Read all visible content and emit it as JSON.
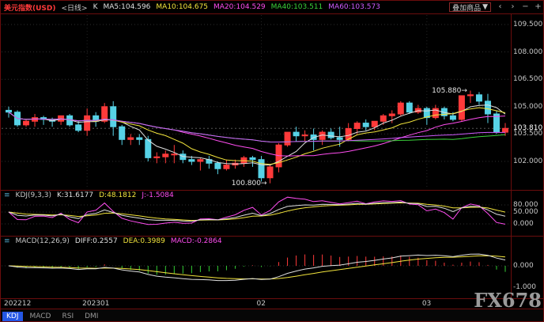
{
  "header": {
    "title": "美元指数(USD)",
    "period": "<日线>",
    "k": {
      "label": "K",
      "color": "#e0e0e0"
    },
    "mas": [
      {
        "label": "MA5:104.596",
        "color": "#e0e0e0"
      },
      {
        "label": "MA10:104.675",
        "color": "#f2e43c"
      },
      {
        "label": "MA20:104.529",
        "color": "#ff4df0"
      },
      {
        "label": "MA40:103.511",
        "color": "#3bd33b"
      },
      {
        "label": "MA60:103.573",
        "color": "#cf5cff"
      }
    ],
    "overlay_button": "叠加商品"
  },
  "icons": {
    "caret_down": "▼",
    "scroll_left": "‹",
    "scroll_right": "›",
    "zoom_out": "−",
    "zoom_in": "+",
    "indicator": "≡"
  },
  "kdj_panel": {
    "name": "KDJ(9,3,3)",
    "values": [
      {
        "label": "K:31.6177",
        "color": "#e0e0e0"
      },
      {
        "label": "D:48.1812",
        "color": "#f2e43c"
      },
      {
        "label": "J:-1.5084",
        "color": "#ff4df0"
      }
    ]
  },
  "macd_panel": {
    "name": "MACD(12,26,9)",
    "values": [
      {
        "label": "DIFF:0.2557",
        "color": "#e0e0e0"
      },
      {
        "label": "DEA:0.3989",
        "color": "#f2e43c"
      },
      {
        "label": "MACD:-0.2864",
        "color": "#ff4df0"
      }
    ]
  },
  "tabs": [
    {
      "label": "KDJ",
      "active": true
    },
    {
      "label": "MACD",
      "active": false
    },
    {
      "label": "RSI",
      "active": false
    },
    {
      "label": "DMI",
      "active": false
    }
  ],
  "watermark": "FX678",
  "colors": {
    "background": "#000000",
    "frame": "#6b0d0d",
    "grid": "#2e2e2e",
    "axis_text": "#c8c8c8",
    "title": "#ff3a3a",
    "up": "#ff3a3a",
    "down": "#57d2e6",
    "hist_pos": "#ff3a3a",
    "hist_neg": "#33cc33",
    "tab_active_bg": "#2457e6",
    "watermark": "#9a9a9a"
  },
  "chart_data": {
    "type": "candlestick",
    "title": "美元指数(USD) 日线",
    "ylim": [
      100.3,
      110.0
    ],
    "y_ticks": [
      "109.500",
      "108.000",
      "106.500",
      "105.000",
      "103.500",
      "102.000"
    ],
    "x_labels": [
      {
        "label": "202212",
        "index": 0
      },
      {
        "label": "202301",
        "index": 9
      },
      {
        "label": "02",
        "index": 29
      },
      {
        "label": "03",
        "index": 48
      }
    ],
    "current_price": {
      "label": "103.810",
      "value": 103.81
    },
    "annotations": [
      {
        "text": "105.880→",
        "candle_index": 53,
        "price": 105.88
      },
      {
        "text": "100.800→",
        "candle_index": 30,
        "price": 100.8
      }
    ],
    "candles_ohlc": [
      [
        104.8,
        105.0,
        104.4,
        104.7
      ],
      [
        104.7,
        104.8,
        103.9,
        104.0
      ],
      [
        104.0,
        104.3,
        103.9,
        104.2
      ],
      [
        104.2,
        104.6,
        103.9,
        104.4
      ],
      [
        104.4,
        104.5,
        104.0,
        104.3
      ],
      [
        104.3,
        104.4,
        103.9,
        104.2
      ],
      [
        104.2,
        104.5,
        104.0,
        104.5
      ],
      [
        104.5,
        104.6,
        103.9,
        104.0
      ],
      [
        104.0,
        104.2,
        103.6,
        103.7
      ],
      [
        103.7,
        104.9,
        103.4,
        104.5
      ],
      [
        104.5,
        104.7,
        103.9,
        104.2
      ],
      [
        104.2,
        105.2,
        104.1,
        105.0
      ],
      [
        105.0,
        105.3,
        103.4,
        103.9
      ],
      [
        103.9,
        104.0,
        102.9,
        103.2
      ],
      [
        103.2,
        103.5,
        102.9,
        103.3
      ],
      [
        103.3,
        103.5,
        102.9,
        103.2
      ],
      [
        103.2,
        103.4,
        102.0,
        102.2
      ],
      [
        102.2,
        102.5,
        101.9,
        102.25
      ],
      [
        102.25,
        102.6,
        101.9,
        102.4
      ],
      [
        102.4,
        102.9,
        101.9,
        102.4
      ],
      [
        102.4,
        102.6,
        101.9,
        102.1
      ],
      [
        102.1,
        102.3,
        101.8,
        102.0
      ],
      [
        102.0,
        102.2,
        101.5,
        102.1
      ],
      [
        102.1,
        102.3,
        101.6,
        101.9
      ],
      [
        101.9,
        102.0,
        101.3,
        101.6
      ],
      [
        101.6,
        102.1,
        101.5,
        101.8
      ],
      [
        101.8,
        102.1,
        101.6,
        101.9
      ],
      [
        101.9,
        102.3,
        101.7,
        102.2
      ],
      [
        102.2,
        102.3,
        101.7,
        102.1
      ],
      [
        102.1,
        102.3,
        100.9,
        101.1
      ],
      [
        101.1,
        101.8,
        100.8,
        101.7
      ],
      [
        101.7,
        103.0,
        101.4,
        102.9
      ],
      [
        102.9,
        103.6,
        102.8,
        103.6
      ],
      [
        103.6,
        103.9,
        103.1,
        103.4
      ],
      [
        103.4,
        103.7,
        103.1,
        103.45
      ],
      [
        103.45,
        103.8,
        102.6,
        103.2
      ],
      [
        103.2,
        103.7,
        102.9,
        103.6
      ],
      [
        103.6,
        103.8,
        103.2,
        103.3
      ],
      [
        103.3,
        103.9,
        102.8,
        103.2
      ],
      [
        103.2,
        104.1,
        103.1,
        103.8
      ],
      [
        103.8,
        104.2,
        103.5,
        104.1
      ],
      [
        104.1,
        104.3,
        103.7,
        103.9
      ],
      [
        103.9,
        104.2,
        103.7,
        104.2
      ],
      [
        104.2,
        104.6,
        104.0,
        104.5
      ],
      [
        104.5,
        104.8,
        104.1,
        104.6
      ],
      [
        104.6,
        105.3,
        104.5,
        105.2
      ],
      [
        105.2,
        105.3,
        104.6,
        104.7
      ],
      [
        104.7,
        105.1,
        104.6,
        104.9
      ],
      [
        104.9,
        105.0,
        104.0,
        104.4
      ],
      [
        104.4,
        105.1,
        104.3,
        104.9
      ],
      [
        104.9,
        105.0,
        104.3,
        104.5
      ],
      [
        104.5,
        104.7,
        104.2,
        104.3
      ],
      [
        104.3,
        105.6,
        104.2,
        105.6
      ],
      [
        105.6,
        105.88,
        105.2,
        105.65
      ],
      [
        105.65,
        105.8,
        105.1,
        105.3
      ],
      [
        105.3,
        105.7,
        104.1,
        104.6
      ],
      [
        104.6,
        104.8,
        103.5,
        103.6
      ],
      [
        103.6,
        104.1,
        103.4,
        103.81
      ]
    ],
    "overlays": [
      {
        "name": "MA5",
        "period": 5,
        "color": "#e0e0e0"
      },
      {
        "name": "MA10",
        "period": 10,
        "color": "#f2e43c"
      },
      {
        "name": "MA20",
        "period": 20,
        "color": "#ff4df0"
      },
      {
        "name": "MA40",
        "period": 40,
        "color": "#3bd33b"
      },
      {
        "name": "MA60",
        "period": 60,
        "color": "#cf5cff"
      }
    ],
    "sub_indicators": {
      "kdj": {
        "params": [
          9,
          3,
          3
        ],
        "y_ticks": [
          "80.000",
          "50.000",
          "0.000"
        ],
        "last": {
          "k": 31.6177,
          "d": 48.1812,
          "j": -1.5084
        }
      },
      "macd": {
        "params": [
          12,
          26,
          9
        ],
        "y_ticks": [
          "0.000",
          "-1.000"
        ],
        "last": {
          "diff": 0.2557,
          "dea": 0.3989,
          "macd": -0.2864
        }
      }
    }
  }
}
